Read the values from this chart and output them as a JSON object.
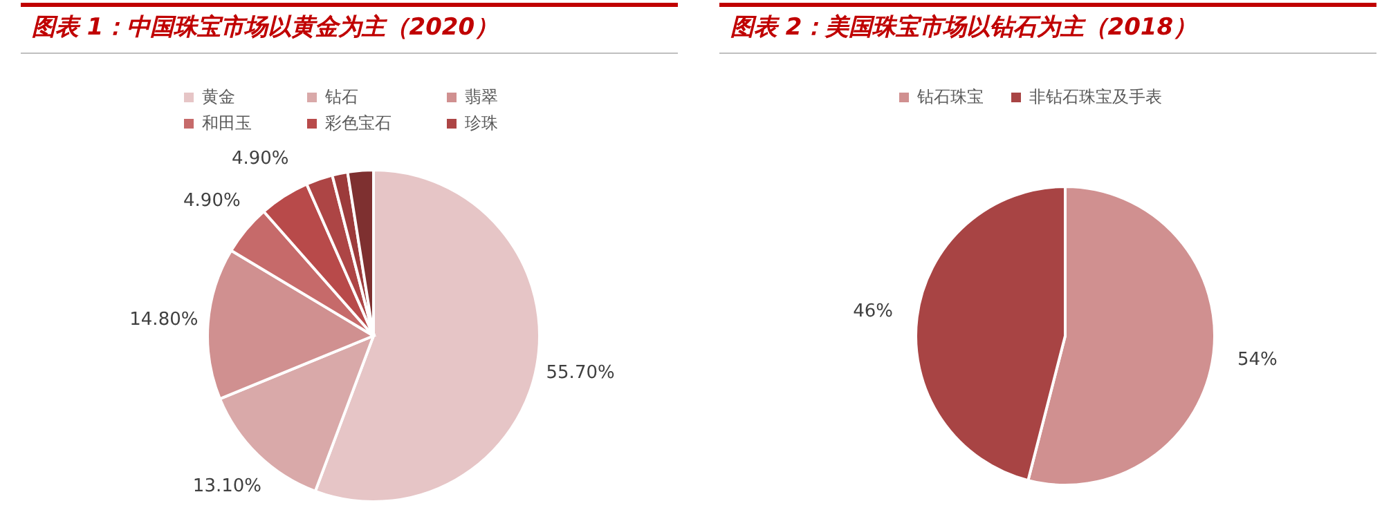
{
  "chart_data": [
    {
      "type": "pie",
      "title": "图表 1：中国珠宝市场以黄金为主（2020）",
      "categories": [
        "黄金",
        "钻石",
        "翡翠",
        "和田玉",
        "彩色宝石",
        "珍珠",
        null,
        null
      ],
      "values": [
        55.7,
        13.1,
        14.8,
        4.9,
        4.9,
        2.6,
        1.5,
        2.5
      ],
      "colors": [
        "#e6c5c6",
        "#d9a9a9",
        "#d09090",
        "#c66a6a",
        "#b84a4a",
        "#ad4545",
        "#9c3b3b",
        "#7e3030"
      ],
      "value_labels": [
        "55.70%",
        "13.10%",
        "14.80%",
        "4.90%",
        "4.90%",
        null,
        null,
        null
      ],
      "legend": "top"
    },
    {
      "type": "pie",
      "title": "图表 2：美国珠宝市场以钻石为主（2018）",
      "categories": [
        "钻石珠宝",
        "非钻石珠宝及手表"
      ],
      "values": [
        54,
        46
      ],
      "colors": [
        "#d09090",
        "#a84444"
      ],
      "value_labels": [
        "54%",
        "46%"
      ],
      "legend": "top"
    }
  ]
}
